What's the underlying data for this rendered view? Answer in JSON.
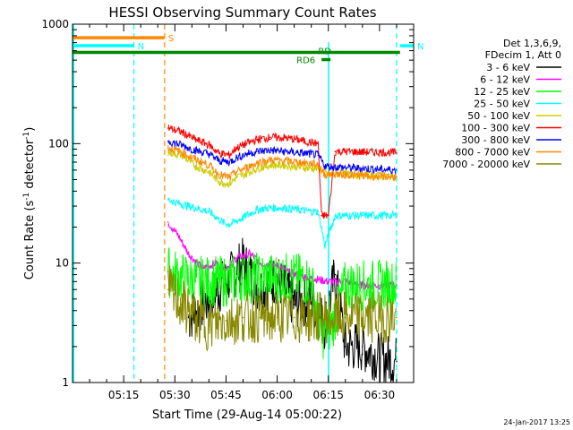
{
  "chart_data": {
    "type": "line",
    "title": "HESSI Observing Summary Count Rates",
    "xlabel": "Start Time (29-Aug-14 05:00:22)",
    "ylabel_main": "Count Rate (s",
    "ylabel_sup1": "-1",
    "ylabel_mid": " detector",
    "ylabel_sup2": "-1",
    "ylabel_end": ")",
    "yscale": "log",
    "ylim": [
      1,
      1000
    ],
    "xlim": [
      "05:00",
      "06:40"
    ],
    "x_ticks": [
      "05:15",
      "05:30",
      "05:45",
      "06:00",
      "06:15",
      "06:30"
    ],
    "y_ticks": [
      "1",
      "10",
      "100",
      "1000"
    ],
    "legend": {
      "position": "right",
      "header1": "Det 1,3,6,9,",
      "header2": "FDecim 1, Att 0",
      "entries": [
        {
          "label": "3 - 6 keV",
          "color": "#000000"
        },
        {
          "label": "6 - 12 keV",
          "color": "#ff00ff"
        },
        {
          "label": "12 - 25 keV",
          "color": "#00ff00"
        },
        {
          "label": "25 - 50 keV",
          "color": "#00ffff"
        },
        {
          "label": "50 - 100 keV",
          "color": "#cccc00"
        },
        {
          "label": "100 - 300 keV",
          "color": "#ff0000"
        },
        {
          "label": "300 - 800 keV",
          "color": "#0000ff"
        },
        {
          "label": "800 - 7000 keV",
          "color": "#ff8800"
        },
        {
          "label": "7000 - 20000 keV",
          "color": "#888800"
        }
      ]
    },
    "flags": [
      {
        "label": "S",
        "color": "#ff8800",
        "start": "05:00",
        "end": "05:27",
        "y": 770
      },
      {
        "label": "N",
        "color": "#00ffff",
        "start": "05:00",
        "end": "05:18",
        "y": 660
      },
      {
        "label": "N",
        "color": "#00ffff",
        "start": "06:36",
        "end": "06:40",
        "y": 660
      },
      {
        "label": "RD",
        "color": "#008800",
        "start": "05:00",
        "end": "06:36",
        "y": 580
      },
      {
        "label": "RD6",
        "color": "#008800",
        "start": "06:13",
        "end": "06:14",
        "y": 505
      }
    ],
    "vlines": [
      {
        "time": "05:18",
        "color": "#00ffff"
      },
      {
        "time": "05:27",
        "color": "#ff8800"
      },
      {
        "time": "06:35",
        "color": "#00ffff"
      }
    ],
    "series": [
      {
        "name": "3 - 6 keV",
        "color": "#000000",
        "x": [
          "05:34",
          "05:40",
          "05:45",
          "05:50",
          "05:55",
          "06:00",
          "06:05",
          "06:10",
          "06:14",
          "06:17",
          "06:20",
          "06:25",
          "06:30",
          "06:35"
        ],
        "values": [
          3.5,
          5,
          7,
          10,
          6,
          7.5,
          4.5,
          5,
          3,
          8,
          2,
          2,
          1.6,
          1.5
        ]
      },
      {
        "name": "6 - 12 keV",
        "color": "#ff00ff",
        "x": [
          "05:28",
          "05:31",
          "05:34",
          "05:38",
          "05:42",
          "05:45",
          "05:48",
          "05:52",
          "05:55",
          "06:00",
          "06:05",
          "06:10",
          "06:15",
          "06:20",
          "06:25",
          "06:30",
          "06:35"
        ],
        "values": [
          22,
          17,
          12,
          9,
          10,
          9,
          11,
          12,
          10,
          9.5,
          8,
          7.5,
          7,
          7,
          6.5,
          6.5,
          6.5
        ]
      },
      {
        "name": "12 - 25 keV",
        "color": "#00ff00",
        "x": [
          "05:28",
          "05:32",
          "05:36",
          "05:40",
          "05:45",
          "05:50",
          "05:55",
          "06:00",
          "06:05",
          "06:10",
          "06:13",
          "06:16",
          "06:20",
          "06:25",
          "06:30",
          "06:35"
        ],
        "values": [
          8.5,
          7.5,
          7,
          7,
          7,
          7.5,
          7.5,
          7.5,
          7.5,
          7,
          2.5,
          3,
          6.5,
          6.5,
          6.5,
          6.5
        ]
      },
      {
        "name": "25 - 50 keV",
        "color": "#00ffff",
        "x": [
          "05:28",
          "05:32",
          "05:36",
          "05:40",
          "05:44",
          "05:46",
          "05:50",
          "05:54",
          "05:58",
          "06:02",
          "06:06",
          "06:10",
          "06:12",
          "06:14",
          "06:17",
          "06:20",
          "06:25",
          "06:30",
          "06:35"
        ],
        "values": [
          34,
          31,
          29,
          27,
          22,
          21,
          24,
          28,
          29,
          29,
          28,
          27,
          27,
          14,
          25,
          25,
          25,
          25,
          25
        ]
      },
      {
        "name": "50 - 100 keV",
        "color": "#cccc00",
        "x": [
          "05:28",
          "05:32",
          "05:36",
          "05:40",
          "05:43",
          "05:46",
          "05:48",
          "05:51",
          "05:54",
          "05:58",
          "06:02",
          "06:06",
          "06:10",
          "06:12",
          "06:15",
          "06:18",
          "06:22",
          "06:26",
          "06:30",
          "06:35"
        ],
        "values": [
          85,
          80,
          65,
          58,
          48,
          46,
          52,
          56,
          62,
          66,
          66,
          64,
          62,
          62,
          55,
          56,
          55,
          54,
          54,
          53
        ]
      },
      {
        "name": "100 - 300 keV",
        "color": "#ff0000",
        "x": [
          "05:28",
          "05:32",
          "05:36",
          "05:40",
          "05:43",
          "05:46",
          "05:48",
          "05:51",
          "05:54",
          "05:58",
          "06:02",
          "06:06",
          "06:10",
          "06:12",
          "06:13",
          "06:15",
          "06:17",
          "06:20",
          "06:25",
          "06:30",
          "06:35"
        ],
        "values": [
          135,
          125,
          108,
          98,
          83,
          80,
          92,
          100,
          108,
          113,
          112,
          108,
          102,
          100,
          25,
          25,
          86,
          86,
          85,
          85,
          84
        ]
      },
      {
        "name": "300 - 800 keV",
        "color": "#0000ff",
        "x": [
          "05:28",
          "05:32",
          "05:36",
          "05:40",
          "05:43",
          "05:46",
          "05:48",
          "05:51",
          "05:54",
          "05:58",
          "06:02",
          "06:06",
          "06:10",
          "06:12",
          "06:14",
          "06:16",
          "06:20",
          "06:25",
          "06:30",
          "06:35"
        ],
        "values": [
          105,
          97,
          88,
          82,
          72,
          70,
          76,
          82,
          86,
          88,
          86,
          84,
          82,
          80,
          65,
          64,
          63,
          62,
          61,
          60
        ]
      },
      {
        "name": "800 - 7000 keV",
        "color": "#ff8800",
        "x": [
          "05:28",
          "05:32",
          "05:36",
          "05:40",
          "05:43",
          "05:46",
          "05:48",
          "05:51",
          "05:54",
          "05:58",
          "06:02",
          "06:06",
          "06:10",
          "06:12",
          "06:14",
          "06:16",
          "06:20",
          "06:25",
          "06:30",
          "06:35"
        ],
        "values": [
          92,
          85,
          74,
          66,
          55,
          52,
          58,
          63,
          69,
          73,
          72,
          70,
          68,
          67,
          55,
          56,
          55,
          54,
          53,
          53
        ]
      },
      {
        "name": "7000 - 20000 keV",
        "color": "#888800",
        "x": [
          "05:28",
          "05:32",
          "05:36",
          "05:40",
          "05:45",
          "05:50",
          "05:55",
          "06:00",
          "06:05",
          "06:10",
          "06:15",
          "06:20",
          "06:25",
          "06:30",
          "06:35"
        ],
        "values": [
          6,
          4.5,
          3.5,
          3,
          3.3,
          3.5,
          3.5,
          3.5,
          3.5,
          3.5,
          3.5,
          3.5,
          3.5,
          3.5,
          3.5
        ]
      }
    ]
  },
  "footer": {
    "date_stamp": "24-Jan-2017 13:25"
  }
}
